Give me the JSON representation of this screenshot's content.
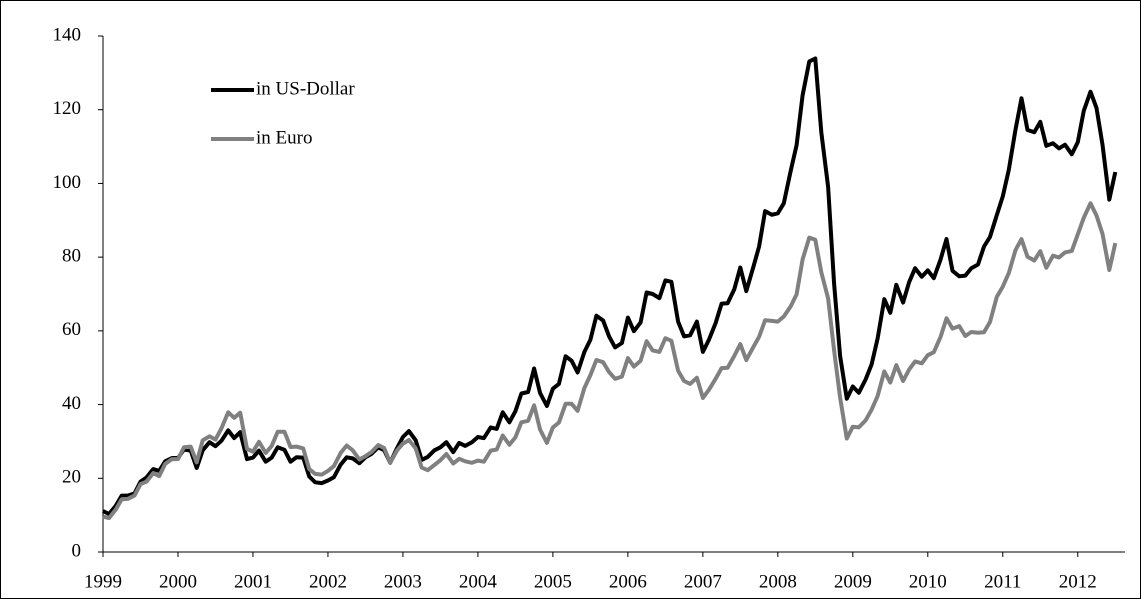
{
  "chart_data": {
    "type": "line",
    "xlim": [
      1999,
      2012.63
    ],
    "xticks": [
      1999,
      2000,
      2001,
      2002,
      2003,
      2004,
      2005,
      2006,
      2007,
      2008,
      2009,
      2010,
      2011,
      2012
    ],
    "ylim": [
      0,
      140
    ],
    "yticks": [
      0,
      20,
      40,
      60,
      80,
      100,
      120,
      140
    ],
    "grid": false,
    "legend": "upper left",
    "x": [
      1999,
      1999.08,
      1999.17,
      1999.25,
      1999.33,
      1999.42,
      1999.5,
      1999.58,
      1999.67,
      1999.75,
      1999.83,
      1999.92,
      2000,
      2000.08,
      2000.17,
      2000.25,
      2000.33,
      2000.42,
      2000.5,
      2000.58,
      2000.67,
      2000.75,
      2000.83,
      2000.92,
      2001,
      2001.08,
      2001.17,
      2001.25,
      2001.33,
      2001.42,
      2001.5,
      2001.58,
      2001.67,
      2001.75,
      2001.83,
      2001.92,
      2002,
      2002.08,
      2002.17,
      2002.25,
      2002.33,
      2002.42,
      2002.5,
      2002.58,
      2002.67,
      2002.75,
      2002.83,
      2002.92,
      2003,
      2003.08,
      2003.17,
      2003.25,
      2003.33,
      2003.42,
      2003.5,
      2003.58,
      2003.67,
      2003.75,
      2003.83,
      2003.92,
      2004,
      2004.08,
      2004.17,
      2004.25,
      2004.33,
      2004.42,
      2004.5,
      2004.58,
      2004.67,
      2004.75,
      2004.83,
      2004.92,
      2005,
      2005.08,
      2005.17,
      2005.25,
      2005.33,
      2005.42,
      2005.5,
      2005.58,
      2005.67,
      2005.75,
      2005.83,
      2005.92,
      2006,
      2006.08,
      2006.17,
      2006.25,
      2006.33,
      2006.42,
      2006.5,
      2006.58,
      2006.67,
      2006.75,
      2006.83,
      2006.92,
      2007,
      2007.08,
      2007.17,
      2007.25,
      2007.33,
      2007.42,
      2007.5,
      2007.58,
      2007.67,
      2007.75,
      2007.83,
      2007.92,
      2008,
      2008.08,
      2008.17,
      2008.25,
      2008.33,
      2008.42,
      2008.5,
      2008.58,
      2008.67,
      2008.75,
      2008.83,
      2008.92,
      2009,
      2009.08,
      2009.17,
      2009.25,
      2009.33,
      2009.42,
      2009.5,
      2009.58,
      2009.67,
      2009.75,
      2009.83,
      2009.92,
      2010,
      2010.08,
      2010.17,
      2010.25,
      2010.33,
      2010.42,
      2010.5,
      2010.58,
      2010.67,
      2010.75,
      2010.83,
      2010.92,
      2011,
      2011.08,
      2011.17,
      2011.25,
      2011.33,
      2011.42,
      2011.5,
      2011.58,
      2011.67,
      2011.75,
      2011.83,
      2011.92,
      2012,
      2012.08,
      2012.17,
      2012.25,
      2012.33,
      2012.42,
      2012.5
    ],
    "series": [
      {
        "name": "in US-Dollar",
        "color": "#000000",
        "values": [
          11.1,
          10.3,
          12.5,
          15.3,
          15.3,
          15.9,
          19.1,
          20.2,
          22.5,
          22.0,
          24.6,
          25.5,
          25.5,
          27.8,
          27.5,
          22.8,
          27.6,
          29.8,
          28.7,
          30.2,
          33.0,
          30.9,
          32.5,
          25.2,
          25.6,
          27.5,
          24.5,
          25.6,
          28.4,
          27.7,
          24.5,
          25.7,
          25.6,
          20.5,
          18.9,
          18.7,
          19.4,
          20.3,
          23.7,
          25.7,
          25.4,
          24.1,
          25.7,
          26.6,
          28.4,
          27.6,
          24.2,
          28.1,
          31.2,
          32.8,
          30.3,
          25.0,
          25.8,
          27.6,
          28.4,
          29.8,
          27.1,
          29.6,
          28.8,
          29.8,
          31.2,
          30.9,
          33.8,
          33.4,
          37.9,
          35.2,
          38.2,
          43.0,
          43.4,
          49.8,
          43.1,
          39.6,
          44.3,
          45.6,
          53.1,
          51.9,
          48.7,
          54.3,
          57.6,
          64.1,
          62.8,
          58.5,
          55.5,
          56.7,
          63.6,
          59.9,
          62.3,
          70.4,
          70.0,
          68.9,
          73.7,
          73.3,
          62.5,
          58.5,
          58.8,
          62.5,
          54.3,
          57.6,
          62.1,
          67.4,
          67.5,
          71.3,
          77.2,
          70.8,
          77.1,
          82.9,
          92.5,
          91.5,
          91.9,
          94.6,
          103.3,
          110.4,
          123.9,
          133.1,
          133.9,
          113.9,
          99.1,
          72.8,
          53.2,
          41.6,
          44.9,
          43.2,
          46.8,
          50.9,
          57.9,
          68.6,
          64.9,
          72.5,
          67.7,
          73.2,
          77.0,
          74.7,
          76.4,
          74.3,
          79.3,
          84.9,
          76.3,
          74.8,
          75.0,
          77.0,
          78.0,
          82.9,
          85.5,
          91.4,
          96.5,
          103.7,
          114.6,
          123.1,
          114.5,
          113.9,
          116.7,
          110.2,
          110.9,
          109.5,
          110.5,
          107.9,
          111.2,
          119.7,
          124.9,
          120.5,
          110.5,
          95.6,
          103.1
        ]
      },
      {
        "name": "in Euro",
        "color": "#808080",
        "values": [
          9.6,
          9.2,
          11.5,
          14.3,
          14.4,
          15.3,
          18.4,
          19.1,
          21.4,
          20.6,
          23.9,
          25.2,
          25.2,
          28.4,
          28.6,
          24.3,
          30.3,
          31.4,
          30.5,
          33.6,
          37.9,
          36.4,
          37.8,
          28.0,
          27.2,
          29.9,
          26.9,
          28.8,
          32.6,
          32.6,
          28.5,
          28.6,
          28.1,
          22.5,
          21.2,
          21.0,
          22.0,
          23.3,
          26.9,
          28.9,
          27.6,
          25.1,
          26.0,
          27.1,
          29.0,
          28.2,
          24.2,
          27.5,
          29.4,
          30.4,
          28.1,
          22.9,
          22.2,
          23.6,
          24.9,
          26.6,
          24.0,
          25.3,
          24.6,
          24.2,
          24.8,
          24.5,
          27.5,
          27.8,
          31.6,
          29.1,
          31.1,
          35.2,
          35.6,
          39.8,
          33.2,
          29.6,
          33.8,
          35.1,
          40.2,
          40.2,
          38.3,
          44.5,
          48.0,
          52.1,
          51.5,
          48.8,
          47.0,
          47.6,
          52.6,
          50.3,
          51.9,
          57.2,
          54.7,
          54.3,
          58.0,
          57.3,
          49.2,
          46.4,
          45.6,
          47.3,
          41.8,
          44.0,
          47.0,
          49.9,
          50.0,
          53.2,
          56.4,
          52.1,
          55.5,
          58.4,
          62.9,
          62.7,
          62.5,
          63.9,
          66.6,
          69.9,
          79.4,
          85.3,
          84.7,
          75.9,
          68.8,
          54.7,
          41.9,
          30.8,
          34.0,
          33.8,
          35.7,
          38.6,
          42.3,
          49.0,
          46.0,
          50.7,
          46.4,
          49.5,
          51.7,
          51.2,
          53.4,
          54.2,
          58.3,
          63.4,
          60.6,
          61.3,
          58.6,
          59.7,
          59.5,
          59.6,
          62.4,
          69.2,
          72.0,
          75.7,
          81.9,
          84.9,
          80.1,
          79.1,
          81.6,
          77.1,
          80.4,
          79.9,
          81.3,
          81.7,
          86.2,
          90.7,
          94.6,
          91.3,
          86.3,
          76.5,
          83.8
        ]
      }
    ]
  }
}
